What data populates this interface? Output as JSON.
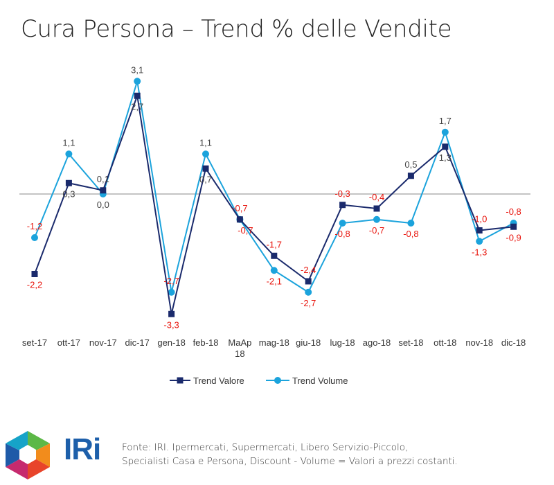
{
  "title": "Cura Persona – Trend % delle Vendite",
  "chart_data": {
    "type": "line",
    "title": "Cura Persona – Trend % delle Vendite",
    "categories": [
      "set-17",
      "ott-17",
      "nov-17",
      "dic-17",
      "gen-18",
      "feb-18",
      "MaAp 18",
      "mag-18",
      "giu-18",
      "lug-18",
      "ago-18",
      "set-18",
      "ott-18",
      "nov-18",
      "dic-18"
    ],
    "series": [
      {
        "name": "Trend Valore",
        "color": "#1a2a6c",
        "marker": "square",
        "values": [
          -2.2,
          0.3,
          0.1,
          2.7,
          -3.3,
          0.7,
          -0.7,
          -1.7,
          -2.4,
          -0.3,
          -0.4,
          0.5,
          1.3,
          -1.0,
          -0.9
        ],
        "labels": [
          "-2,2",
          "0,3",
          "0,1",
          "2,7",
          "-3,3",
          "0,7",
          "-0,7",
          "-1,7",
          "-2,4",
          "-0,3",
          "-0,4",
          "0,5",
          "1,3",
          "-1,0",
          "-0,9"
        ]
      },
      {
        "name": "Trend Volume",
        "color": "#1ba3dc",
        "marker": "circle",
        "values": [
          -1.2,
          1.1,
          0.0,
          3.1,
          -2.7,
          1.1,
          -0.7,
          -2.1,
          -2.7,
          -0.8,
          -0.7,
          -0.8,
          1.7,
          -1.3,
          -0.8
        ],
        "labels": [
          "-1,2",
          "1,1",
          "0,0",
          "3,1",
          "-2,7",
          "1,1",
          "-0,7",
          "-2,1",
          "-2,7",
          "-0,8",
          "-0,7",
          "-0,8",
          "1,7",
          "-1,3",
          "-0,8"
        ]
      }
    ],
    "legend": "bottom",
    "grid": false
  },
  "footer": {
    "logo_text": "IRi",
    "source_line1": "Fonte: IRI.  Ipermercati, Supermercati, Libero Servizio-Piccolo,",
    "source_line2": "Specialisti Casa e Persona, Discount -  Volume =  Valori a prezzi costanti."
  }
}
